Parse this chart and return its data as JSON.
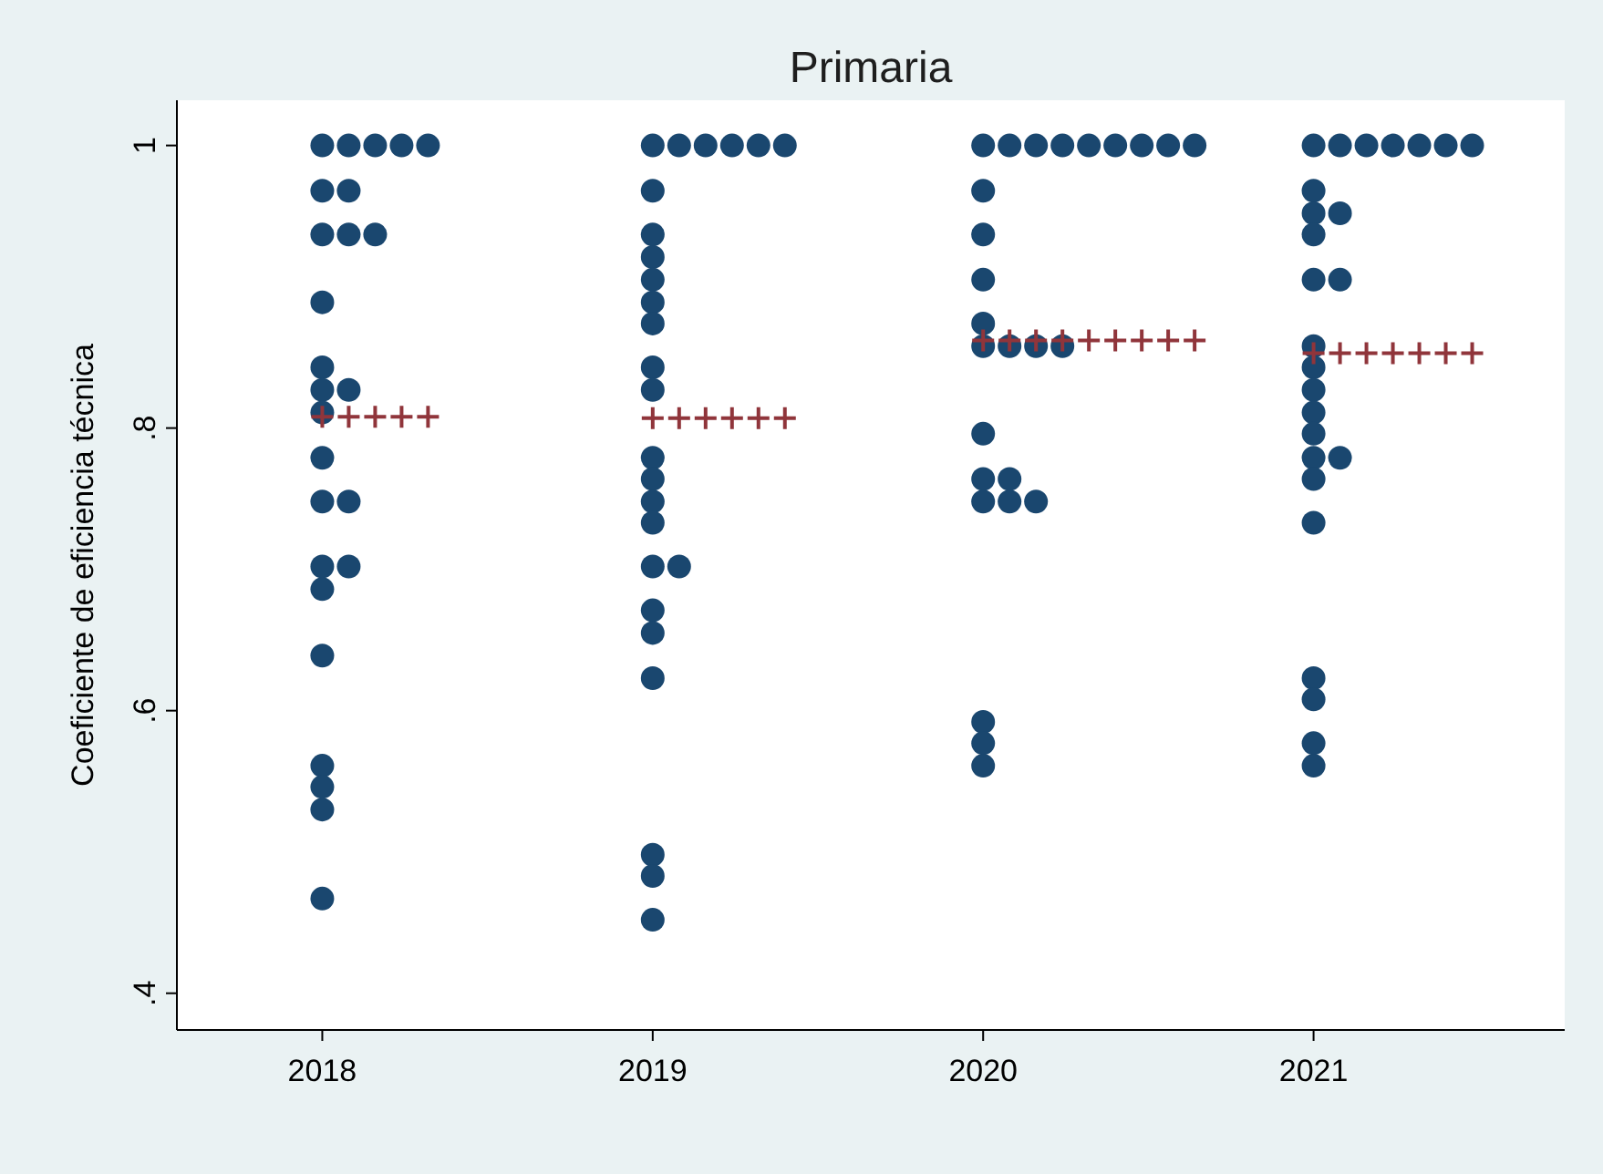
{
  "chart_data": {
    "type": "scatter",
    "title": "Primaria",
    "ylabel": "Coeficiente de eficiencia técnica",
    "xlim": [
      2017.56,
      2021.76
    ],
    "xticks": [
      2018,
      2019,
      2020,
      2021
    ],
    "ylim": [
      0.374,
      1.032
    ],
    "yticks": [
      {
        "value": 0.4,
        "label": ".4"
      },
      {
        "value": 0.6,
        "label": ".6"
      },
      {
        "value": 0.8,
        "label": ".8"
      },
      {
        "value": 1,
        "label": "1"
      }
    ],
    "grid": false,
    "series": [
      {
        "marker": "circle",
        "color": "#1a476f",
        "x": [
          2018,
          2018.08,
          2018.16,
          2018.24,
          2018.32,
          2018,
          2018.08,
          2018,
          2018.08,
          2018.16,
          2018,
          2018,
          2018,
          2018.08,
          2018,
          2018,
          2018,
          2018.08,
          2018,
          2018.08,
          2018,
          2018,
          2018,
          2018,
          2018,
          2018,
          2019,
          2019.08,
          2019.16,
          2019.24,
          2019.32,
          2019.4,
          2019,
          2019,
          2019,
          2019,
          2019,
          2019,
          2019,
          2019,
          2019,
          2019,
          2019,
          2019,
          2019,
          2019.08,
          2019,
          2019,
          2019,
          2019,
          2019,
          2019,
          2020,
          2020.08,
          2020.16,
          2020.24,
          2020.32,
          2020.4,
          2020.48,
          2020.56,
          2020.64,
          2020,
          2020,
          2020,
          2020,
          2020,
          2020.08,
          2020.16,
          2020.24,
          2020,
          2020,
          2020.08,
          2020,
          2020.08,
          2020.16,
          2020,
          2020,
          2020,
          2021,
          2021.08,
          2021.16,
          2021.24,
          2021.32,
          2021.4,
          2021.48,
          2021,
          2021,
          2021.08,
          2021,
          2021,
          2021.08,
          2021,
          2021,
          2021,
          2021,
          2021,
          2021,
          2021.08,
          2021,
          2021,
          2021,
          2021,
          2021,
          2021
        ],
        "values": [
          1,
          1,
          1,
          1,
          1,
          0.968,
          0.968,
          0.937,
          0.937,
          0.937,
          0.889,
          0.843,
          0.827,
          0.827,
          0.811,
          0.779,
          0.748,
          0.748,
          0.702,
          0.702,
          0.686,
          0.639,
          0.561,
          0.546,
          0.53,
          0.467,
          1,
          1,
          1,
          1,
          1,
          1,
          0.968,
          0.937,
          0.921,
          0.905,
          0.889,
          0.874,
          0.843,
          0.827,
          0.779,
          0.764,
          0.748,
          0.733,
          0.702,
          0.702,
          0.671,
          0.655,
          0.623,
          0.498,
          0.483,
          0.452,
          1,
          1,
          1,
          1,
          1,
          1,
          1,
          1,
          1,
          0.968,
          0.937,
          0.905,
          0.874,
          0.858,
          0.858,
          0.858,
          0.858,
          0.796,
          0.764,
          0.764,
          0.748,
          0.748,
          0.748,
          0.592,
          0.577,
          0.561,
          1,
          1,
          1,
          1,
          1,
          1,
          1,
          0.968,
          0.952,
          0.952,
          0.937,
          0.905,
          0.905,
          0.858,
          0.843,
          0.827,
          0.811,
          0.796,
          0.779,
          0.779,
          0.764,
          0.733,
          0.623,
          0.608,
          0.577,
          0.561
        ]
      },
      {
        "marker": "cross",
        "color": "#90353b",
        "x": [
          2018,
          2018.08,
          2018.16,
          2018.24,
          2018.32,
          2019,
          2019.08,
          2019.16,
          2019.24,
          2019.32,
          2019.4,
          2020,
          2020.08,
          2020.16,
          2020.24,
          2020.32,
          2020.4,
          2020.48,
          2020.56,
          2020.64,
          2021,
          2021.08,
          2021.16,
          2021.24,
          2021.32,
          2021.4,
          2021.48
        ],
        "values": [
          0.808,
          0.808,
          0.808,
          0.808,
          0.808,
          0.807,
          0.807,
          0.807,
          0.807,
          0.807,
          0.807,
          0.862,
          0.862,
          0.862,
          0.862,
          0.862,
          0.862,
          0.862,
          0.862,
          0.862,
          0.853,
          0.853,
          0.853,
          0.853,
          0.853,
          0.853,
          0.853
        ]
      }
    ]
  }
}
